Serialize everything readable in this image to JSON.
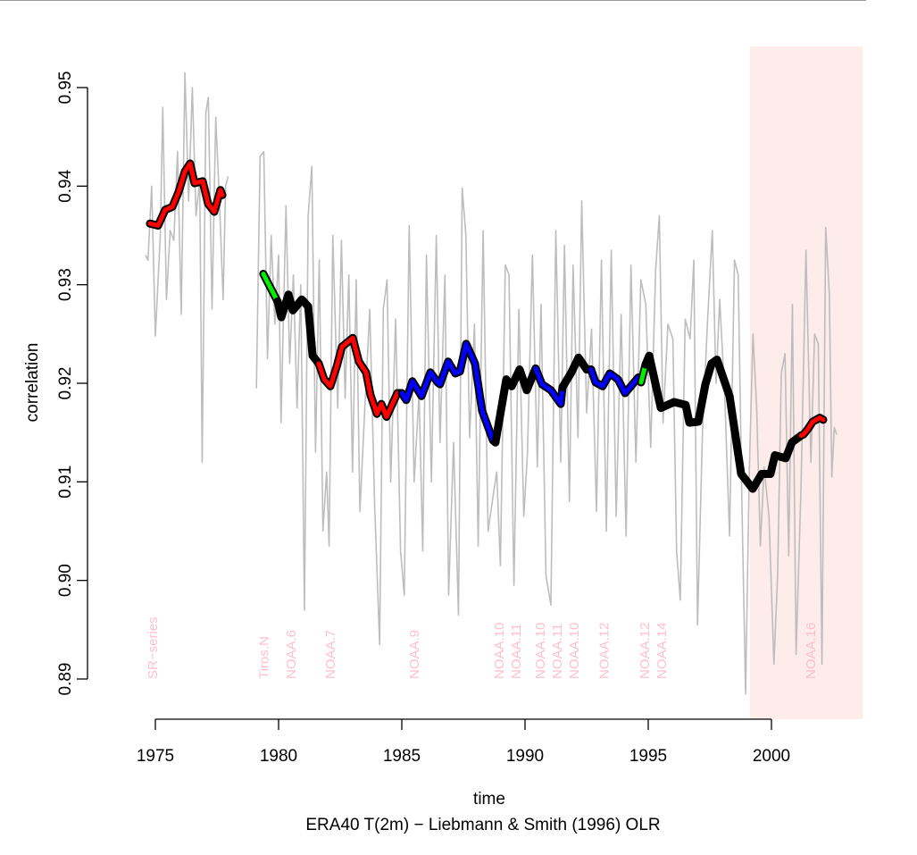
{
  "chart_data": {
    "type": "line",
    "title": "",
    "xlabel": "time",
    "subtitle": "ERA40 T(2m) − Liebmann & Smith (1996) OLR",
    "ylabel": "correlation",
    "xlim": [
      1974.4,
      2003.7
    ],
    "ylim": [
      0.889,
      0.953
    ],
    "x_ticks": [
      1975,
      1980,
      1985,
      1990,
      1995,
      2000
    ],
    "x_tick_labels": [
      "1975",
      "1980",
      "1985",
      "1990",
      "1995",
      "2000"
    ],
    "y_ticks": [
      0.89,
      0.9,
      0.91,
      0.92,
      0.93,
      0.94,
      0.95
    ],
    "y_tick_labels": [
      "0.89",
      "0.90",
      "0.91",
      "0.92",
      "0.93",
      "0.94",
      "0.95"
    ],
    "grid": false,
    "shaded_region": {
      "x": [
        1999.13,
        2003.7
      ],
      "color": "#fdecea"
    },
    "colors": {
      "raw": "#bdbdbd",
      "outline": "#000000",
      "label": "#ffc0cb"
    },
    "raw_series": [
      [
        [
          1974.6,
          0.933
        ],
        [
          1974.7,
          0.9325
        ],
        [
          1974.85,
          0.94
        ],
        [
          1975.0,
          0.9248
        ],
        [
          1975.2,
          0.935
        ],
        [
          1975.3,
          0.948
        ],
        [
          1975.45,
          0.9285
        ],
        [
          1975.6,
          0.9355
        ],
        [
          1975.75,
          0.9345
        ],
        [
          1975.9,
          0.9435
        ],
        [
          1976.05,
          0.927
        ],
        [
          1976.2,
          0.9515
        ],
        [
          1976.35,
          0.9385
        ],
        [
          1976.5,
          0.95
        ],
        [
          1976.65,
          0.937
        ],
        [
          1976.8,
          0.9405
        ],
        [
          1976.9,
          0.912
        ],
        [
          1977.05,
          0.9475
        ],
        [
          1977.15,
          0.949
        ],
        [
          1977.3,
          0.9275
        ],
        [
          1977.45,
          0.947
        ],
        [
          1977.6,
          0.9385
        ],
        [
          1977.75,
          0.9285
        ],
        [
          1977.85,
          0.94
        ],
        [
          1977.95,
          0.941
        ]
      ],
      [
        [
          1979.1,
          0.9195
        ],
        [
          1979.25,
          0.943
        ],
        [
          1979.4,
          0.9435
        ],
        [
          1979.55,
          0.9225
        ],
        [
          1979.7,
          0.935
        ],
        [
          1979.85,
          0.926
        ],
        [
          1980.0,
          0.933
        ],
        [
          1980.1,
          0.916
        ],
        [
          1980.3,
          0.938
        ],
        [
          1980.45,
          0.922
        ],
        [
          1980.6,
          0.931
        ],
        [
          1980.75,
          0.9175
        ],
        [
          1980.9,
          0.93
        ],
        [
          1981.05,
          0.897
        ],
        [
          1981.2,
          0.937
        ],
        [
          1981.35,
          0.942
        ],
        [
          1981.5,
          0.913
        ],
        [
          1981.65,
          0.9325
        ],
        [
          1981.8,
          0.905
        ],
        [
          1981.95,
          0.911
        ],
        [
          1982.05,
          0.9035
        ],
        [
          1982.2,
          0.935
        ],
        [
          1982.4,
          0.9175
        ],
        [
          1982.55,
          0.9345
        ],
        [
          1982.7,
          0.9185
        ],
        [
          1982.85,
          0.931
        ],
        [
          1983.0,
          0.911
        ],
        [
          1983.15,
          0.9305
        ],
        [
          1983.3,
          0.907
        ],
        [
          1983.5,
          0.9175
        ],
        [
          1983.7,
          0.9275
        ],
        [
          1983.9,
          0.9075
        ],
        [
          1984.1,
          0.8935
        ],
        [
          1984.25,
          0.9275
        ],
        [
          1984.4,
          0.9305
        ],
        [
          1984.55,
          0.91
        ],
        [
          1984.75,
          0.9265
        ],
        [
          1984.95,
          0.903
        ],
        [
          1985.1,
          0.8985
        ],
        [
          1985.3,
          0.936
        ],
        [
          1985.5,
          0.91
        ],
        [
          1985.7,
          0.919
        ],
        [
          1985.85,
          0.903
        ],
        [
          1986.0,
          0.933
        ],
        [
          1986.2,
          0.91
        ],
        [
          1986.4,
          0.935
        ],
        [
          1986.55,
          0.914
        ],
        [
          1986.75,
          0.931
        ],
        [
          1986.9,
          0.8985
        ],
        [
          1987.1,
          0.914
        ],
        [
          1987.3,
          0.8965
        ],
        [
          1987.45,
          0.9398
        ],
        [
          1987.6,
          0.935
        ],
        [
          1987.75,
          0.9145
        ],
        [
          1987.95,
          0.926
        ],
        [
          1988.1,
          0.9035
        ],
        [
          1988.3,
          0.9355
        ],
        [
          1988.5,
          0.905
        ],
        [
          1988.7,
          0.9085
        ],
        [
          1988.85,
          0.911
        ],
        [
          1989.0,
          0.9015
        ],
        [
          1989.2,
          0.932
        ],
        [
          1989.35,
          0.931
        ],
        [
          1989.55,
          0.8995
        ],
        [
          1989.75,
          0.9275
        ],
        [
          1989.95,
          0.9065
        ],
        [
          1990.1,
          0.913
        ],
        [
          1990.3,
          0.933
        ],
        [
          1990.5,
          0.9115
        ],
        [
          1990.65,
          0.928
        ],
        [
          1990.85,
          0.9005
        ],
        [
          1991.05,
          0.8975
        ],
        [
          1991.25,
          0.9355
        ],
        [
          1991.45,
          0.912
        ],
        [
          1991.6,
          0.934
        ],
        [
          1991.8,
          0.908
        ],
        [
          1991.95,
          0.932
        ],
        [
          1992.15,
          0.9145
        ],
        [
          1992.3,
          0.9385
        ],
        [
          1992.5,
          0.917
        ],
        [
          1992.7,
          0.9255
        ],
        [
          1992.9,
          0.907
        ],
        [
          1993.1,
          0.9325
        ],
        [
          1993.3,
          0.905
        ],
        [
          1993.5,
          0.9335
        ],
        [
          1993.7,
          0.9065
        ],
        [
          1993.9,
          0.927
        ],
        [
          1994.1,
          0.9045
        ],
        [
          1994.3,
          0.932
        ],
        [
          1994.5,
          0.912
        ],
        [
          1994.7,
          0.9305
        ],
        [
          1994.9,
          0.928
        ],
        [
          1995.1,
          0.9135
        ],
        [
          1995.3,
          0.9315
        ],
        [
          1995.45,
          0.937
        ],
        [
          1995.6,
          0.916
        ],
        [
          1995.8,
          0.926
        ],
        [
          1996.0,
          0.9245
        ],
        [
          1996.15,
          0.903
        ],
        [
          1996.3,
          0.898
        ],
        [
          1996.5,
          0.9265
        ],
        [
          1996.7,
          0.9245
        ],
        [
          1996.85,
          0.9325
        ],
        [
          1997.0,
          0.8955
        ],
        [
          1997.2,
          0.915
        ],
        [
          1997.4,
          0.926
        ],
        [
          1997.6,
          0.9355
        ],
        [
          1997.75,
          0.92
        ],
        [
          1997.9,
          0.9285
        ],
        [
          1998.1,
          0.919
        ],
        [
          1998.3,
          0.9045
        ],
        [
          1998.5,
          0.9325
        ],
        [
          1998.65,
          0.931
        ],
        [
          1998.8,
          0.908
        ],
        [
          1998.95,
          0.8885
        ],
        [
          1999.1,
          0.911
        ],
        [
          1999.25,
          0.925
        ],
        [
          1999.4,
          0.9175
        ],
        [
          1999.55,
          0.9035
        ],
        [
          1999.7,
          0.9115
        ],
        [
          1999.9,
          0.9065
        ],
        [
          2000.1,
          0.8915
        ],
        [
          2000.25,
          0.9005
        ],
        [
          2000.4,
          0.921
        ],
        [
          2000.55,
          0.923
        ],
        [
          2000.7,
          0.9025
        ],
        [
          2000.85,
          0.928
        ],
        [
          2001.0,
          0.8925
        ],
        [
          2001.2,
          0.9095
        ],
        [
          2001.4,
          0.9335
        ],
        [
          2001.6,
          0.912
        ],
        [
          2001.75,
          0.925
        ],
        [
          2001.9,
          0.924
        ],
        [
          2002.05,
          0.8915
        ],
        [
          2002.2,
          0.9358
        ],
        [
          2002.35,
          0.929
        ],
        [
          2002.45,
          0.9105
        ],
        [
          2002.55,
          0.9155
        ],
        [
          2002.65,
          0.9148
        ]
      ]
    ],
    "smoothed_segments": [
      {
        "color": "#ff0000",
        "points": [
          [
            1974.78,
            0.9362
          ],
          [
            1975.11,
            0.936
          ],
          [
            1975.4,
            0.9376
          ],
          [
            1975.69,
            0.9379
          ],
          [
            1975.94,
            0.9394
          ],
          [
            1976.2,
            0.9415
          ],
          [
            1976.41,
            0.9423
          ],
          [
            1976.59,
            0.9403
          ],
          [
            1976.92,
            0.9405
          ],
          [
            1977.14,
            0.9382
          ],
          [
            1977.39,
            0.9374
          ],
          [
            1977.64,
            0.9396
          ],
          [
            1977.72,
            0.9391
          ]
        ]
      },
      {
        "color": "#00ee00",
        "points": [
          [
            1979.38,
            0.9311
          ],
          [
            1979.96,
            0.9283
          ]
        ]
      },
      {
        "color": "#000000",
        "points": [
          [
            1979.96,
            0.9283
          ],
          [
            1980.11,
            0.9267
          ],
          [
            1980.4,
            0.929
          ],
          [
            1980.58,
            0.9274
          ],
          [
            1980.94,
            0.9285
          ],
          [
            1981.2,
            0.9278
          ],
          [
            1981.38,
            0.9228
          ],
          [
            1981.63,
            0.922
          ]
        ]
      },
      {
        "color": "#ff0000",
        "points": [
          [
            1981.63,
            0.922
          ],
          [
            1981.85,
            0.9204
          ],
          [
            1982.1,
            0.9197
          ],
          [
            1982.36,
            0.9217
          ],
          [
            1982.57,
            0.9237
          ],
          [
            1983.01,
            0.9246
          ],
          [
            1983.26,
            0.9222
          ],
          [
            1983.55,
            0.9211
          ],
          [
            1983.73,
            0.9188
          ],
          [
            1983.99,
            0.9169
          ],
          [
            1984.17,
            0.9179
          ],
          [
            1984.38,
            0.9166
          ],
          [
            1984.82,
            0.919
          ],
          [
            1985.0,
            0.919
          ]
        ]
      },
      {
        "color": "#0000ff",
        "points": [
          [
            1985.0,
            0.919
          ],
          [
            1985.18,
            0.9183
          ],
          [
            1985.43,
            0.9202
          ],
          [
            1985.8,
            0.9187
          ],
          [
            1986.16,
            0.9211
          ],
          [
            1986.45,
            0.9201
          ],
          [
            1986.55,
            0.9199
          ],
          [
            1986.88,
            0.9222
          ],
          [
            1987.17,
            0.921
          ],
          [
            1987.36,
            0.9212
          ],
          [
            1987.61,
            0.924
          ],
          [
            1987.97,
            0.922
          ],
          [
            1988.26,
            0.9172
          ],
          [
            1988.7,
            0.9142
          ],
          [
            1988.8,
            0.914
          ]
        ]
      },
      {
        "color": "#000000",
        "points": [
          [
            1988.8,
            0.914
          ],
          [
            1989.24,
            0.9204
          ],
          [
            1989.46,
            0.9197
          ],
          [
            1989.78,
            0.9214
          ],
          [
            1990.07,
            0.9193
          ],
          [
            1990.43,
            0.9215
          ]
        ]
      },
      {
        "color": "#0000ff",
        "points": [
          [
            1990.43,
            0.9215
          ],
          [
            1990.69,
            0.9199
          ],
          [
            1991.05,
            0.9193
          ],
          [
            1991.45,
            0.9179
          ],
          [
            1991.52,
            0.9196
          ]
        ]
      },
      {
        "color": "#000000",
        "points": [
          [
            1991.52,
            0.9196
          ],
          [
            1991.88,
            0.9211
          ],
          [
            1992.17,
            0.9226
          ],
          [
            1992.5,
            0.9214
          ],
          [
            1992.68,
            0.9214
          ]
        ]
      },
      {
        "color": "#0000ff",
        "points": [
          [
            1992.68,
            0.9214
          ],
          [
            1992.86,
            0.9201
          ],
          [
            1993.15,
            0.9197
          ],
          [
            1993.44,
            0.921
          ],
          [
            1993.77,
            0.9204
          ],
          [
            1994.06,
            0.919
          ],
          [
            1994.6,
            0.9206
          ],
          [
            1994.71,
            0.9201
          ]
        ]
      },
      {
        "color": "#00ee00",
        "points": [
          [
            1994.71,
            0.9201
          ],
          [
            1994.89,
            0.9219
          ]
        ]
      },
      {
        "color": "#000000",
        "points": [
          [
            1994.89,
            0.9219
          ],
          [
            1995.04,
            0.9228
          ],
          [
            1995.51,
            0.9175
          ],
          [
            1996.05,
            0.9181
          ],
          [
            1996.52,
            0.9178
          ],
          [
            1996.67,
            0.916
          ],
          [
            1997.03,
            0.9161
          ],
          [
            1997.32,
            0.9199
          ],
          [
            1997.57,
            0.922
          ],
          [
            1997.79,
            0.9224
          ],
          [
            1998.3,
            0.9187
          ],
          [
            1998.77,
            0.9108
          ],
          [
            1999.24,
            0.9093
          ],
          [
            1999.6,
            0.9108
          ],
          [
            1999.96,
            0.9108
          ],
          [
            2000.14,
            0.9127
          ],
          [
            2000.58,
            0.9124
          ],
          [
            2000.83,
            0.914
          ],
          [
            2001.2,
            0.9147
          ]
        ]
      },
      {
        "color": "#ff0000",
        "points": [
          [
            2001.2,
            0.9147
          ],
          [
            2001.3,
            0.9148
          ],
          [
            2001.49,
            0.9154
          ],
          [
            2001.67,
            0.9161
          ],
          [
            2001.96,
            0.9165
          ],
          [
            2002.1,
            0.9163
          ]
        ]
      }
    ],
    "satellite_labels": [
      {
        "text": "SR−series",
        "x": 1974.9
      },
      {
        "text": "Tiros.N",
        "x": 1979.4
      },
      {
        "text": "NOAA.6",
        "x": 1980.5
      },
      {
        "text": "NOAA.7",
        "x": 1982.1
      },
      {
        "text": "NOAA.9",
        "x": 1985.5
      },
      {
        "text": "NOAA.10",
        "x": 1989.3
      },
      {
        "text": "NOAA.11",
        "x": 1989.3
      },
      {
        "text": "NOAA.10",
        "x": 1990.8
      },
      {
        "text": "NOAA.11",
        "x": 1991.45
      },
      {
        "text": "NOAA.10",
        "x": 1991.65
      },
      {
        "text": "NOAA.12",
        "x": 1993.2
      },
      {
        "text": "NOAA.12",
        "x": 1995.1
      },
      {
        "text": "NOAA.14",
        "x": 1995.3
      },
      {
        "text": "NOAA.16",
        "x": 2001.6
      }
    ]
  }
}
